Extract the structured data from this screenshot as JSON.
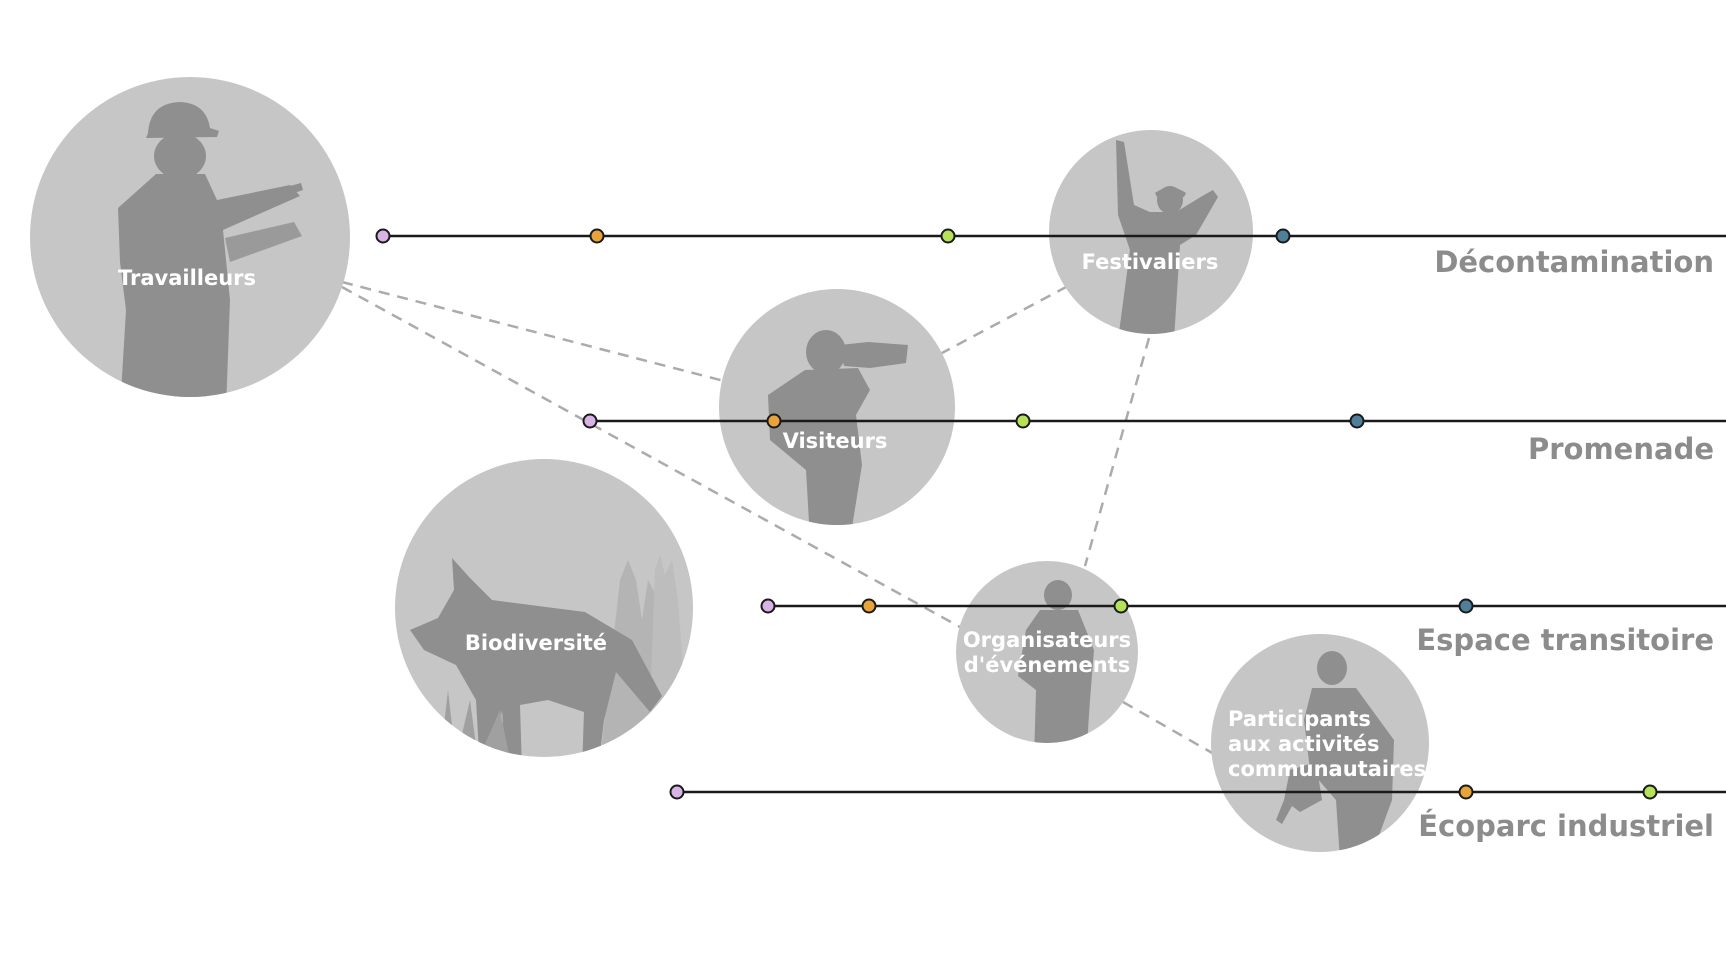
{
  "colors": {
    "circle": "#c6c6c6",
    "silhouette": "#8f8f8f",
    "track_line": "#1a1a1a",
    "dashed": "#ababab",
    "label": "#8c8c8c",
    "dots": {
      "pink": "#d9b3e6",
      "orange": "#e8a33b",
      "green": "#b6e25a",
      "blue": "#4f7f99"
    }
  },
  "circles": [
    {
      "id": "travailleurs",
      "lines": [
        "Travailleurs"
      ],
      "icon": "construction-worker-icon"
    },
    {
      "id": "festivaliers",
      "lines": [
        "Festivaliers"
      ],
      "icon": "festival-goer-icon"
    },
    {
      "id": "visiteurs",
      "lines": [
        "Visiteurs"
      ],
      "icon": "photographer-icon"
    },
    {
      "id": "biodiversite",
      "lines": [
        "Biodiversité"
      ],
      "icon": "fox-icon"
    },
    {
      "id": "organisateurs",
      "lines": [
        "Organisateurs",
        "d'événements"
      ],
      "icon": "event-organizer-icon"
    },
    {
      "id": "participants",
      "lines": [
        "Participants",
        "aux activités",
        "communautaires"
      ],
      "icon": "community-participant-icon"
    }
  ],
  "tracks": [
    {
      "id": "decontamination",
      "label": "Décontamination",
      "dots": [
        "pink",
        "orange",
        "green",
        "blue"
      ]
    },
    {
      "id": "promenade",
      "label": "Promenade",
      "dots": [
        "pink",
        "orange",
        "green",
        "blue"
      ]
    },
    {
      "id": "espace-transitoire",
      "label": "Espace transitoire",
      "dots": [
        "pink",
        "orange",
        "green",
        "blue"
      ]
    },
    {
      "id": "ecoparc-industriel",
      "label": "Écoparc industriel",
      "dots": [
        "pink",
        "orange",
        "green"
      ]
    }
  ]
}
